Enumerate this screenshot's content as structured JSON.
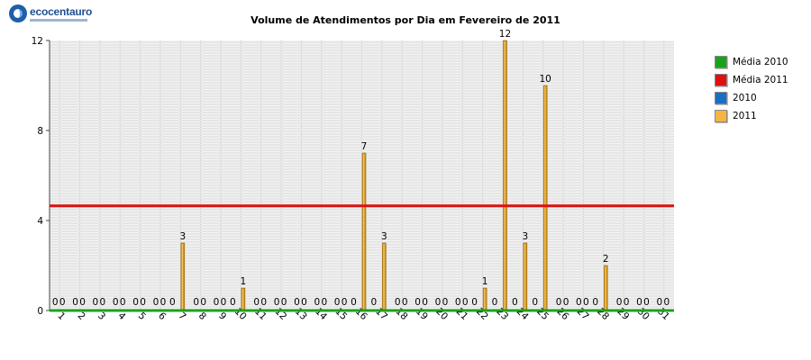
{
  "logo": {
    "text": "ecocentauro"
  },
  "chart_data": {
    "type": "bar",
    "title": "Volume de Atendimentos por Dia em Fevereiro de 2011",
    "xlabel": "",
    "ylabel": "",
    "ylim": [
      0,
      12
    ],
    "yticks": [
      "0",
      "4",
      "8",
      "12"
    ],
    "grid": true,
    "legend_position": "right",
    "categories": [
      "1",
      "2",
      "3",
      "4",
      "5",
      "6",
      "7",
      "8",
      "9",
      "10",
      "11",
      "12",
      "13",
      "14",
      "15",
      "16",
      "17",
      "18",
      "19",
      "20",
      "21",
      "22",
      "23",
      "24",
      "25",
      "26",
      "27",
      "28",
      "29",
      "30",
      "31"
    ],
    "series": [
      {
        "name": "2010",
        "color": "#1a6fc4",
        "values": [
          0,
          0,
          0,
          0,
          0,
          0,
          0,
          0,
          0,
          0,
          0,
          0,
          0,
          0,
          0,
          0,
          0,
          0,
          0,
          0,
          0,
          0,
          0,
          0,
          0,
          0,
          0,
          0,
          0,
          0,
          0
        ]
      },
      {
        "name": "2011",
        "color": "#f5b540",
        "values": [
          0,
          0,
          0,
          0,
          0,
          0,
          3,
          0,
          0,
          1,
          0,
          0,
          0,
          0,
          0,
          7,
          3,
          0,
          0,
          0,
          0,
          1,
          12,
          3,
          10,
          0,
          0,
          2,
          0,
          0,
          0
        ]
      }
    ],
    "reference_lines": [
      {
        "name": "Média 2010",
        "color": "#1aa31a",
        "value": 0
      },
      {
        "name": "Média 2011",
        "color": "#dd1111",
        "value": 4.65
      }
    ],
    "legend": [
      {
        "label": "Média 2010",
        "color": "#1aa31a"
      },
      {
        "label": "Média 2011",
        "color": "#dd1111"
      },
      {
        "label": "2010",
        "color": "#1a6fc4"
      },
      {
        "label": "2011",
        "color": "#f5b540"
      }
    ]
  }
}
